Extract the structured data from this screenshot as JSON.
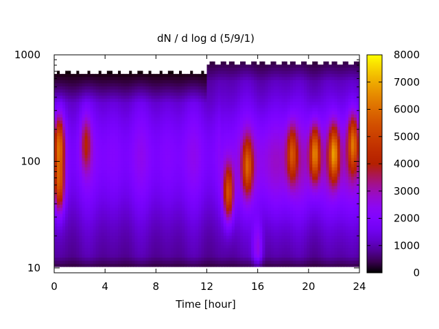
{
  "chart_data": {
    "type": "heatmap",
    "title": "dN / d log d (5/9/1)",
    "xlabel": "Time [hour]",
    "ylabel": "",
    "x_range": [
      0,
      24
    ],
    "x_ticks": [
      0,
      4,
      8,
      12,
      16,
      20,
      24
    ],
    "y_scale": "log",
    "y_range": [
      9,
      1000
    ],
    "y_ticks": [
      10,
      100,
      1000
    ],
    "colorbar": {
      "range": [
        0,
        8000
      ],
      "ticks": [
        0,
        1000,
        2000,
        3000,
        4000,
        5000,
        6000,
        7000,
        8000
      ],
      "colormap": "gnuplot-rgbformulae-7-5-15",
      "colors": [
        "#000000",
        "#3b006f",
        "#8b00ff",
        "#c60f9e",
        "#e64a00",
        "#f89500",
        "#ffd700",
        "#ffff00"
      ]
    },
    "grid": false,
    "hotspots": [
      {
        "time": 0.4,
        "size": 150,
        "value": 5200
      },
      {
        "time": 0.4,
        "size": 60,
        "value": 5000
      },
      {
        "time": 2.5,
        "size": 150,
        "value": 3300
      },
      {
        "time": 13.7,
        "size": 50,
        "value": 5200
      },
      {
        "time": 15.2,
        "size": 90,
        "value": 4500
      },
      {
        "time": 16.0,
        "size": 15,
        "value": 3200
      },
      {
        "time": 18.7,
        "size": 120,
        "value": 4300
      },
      {
        "time": 20.5,
        "size": 120,
        "value": 5600
      },
      {
        "time": 22.0,
        "size": 120,
        "value": 5600
      },
      {
        "time": 23.5,
        "size": 150,
        "value": 5000
      }
    ]
  }
}
